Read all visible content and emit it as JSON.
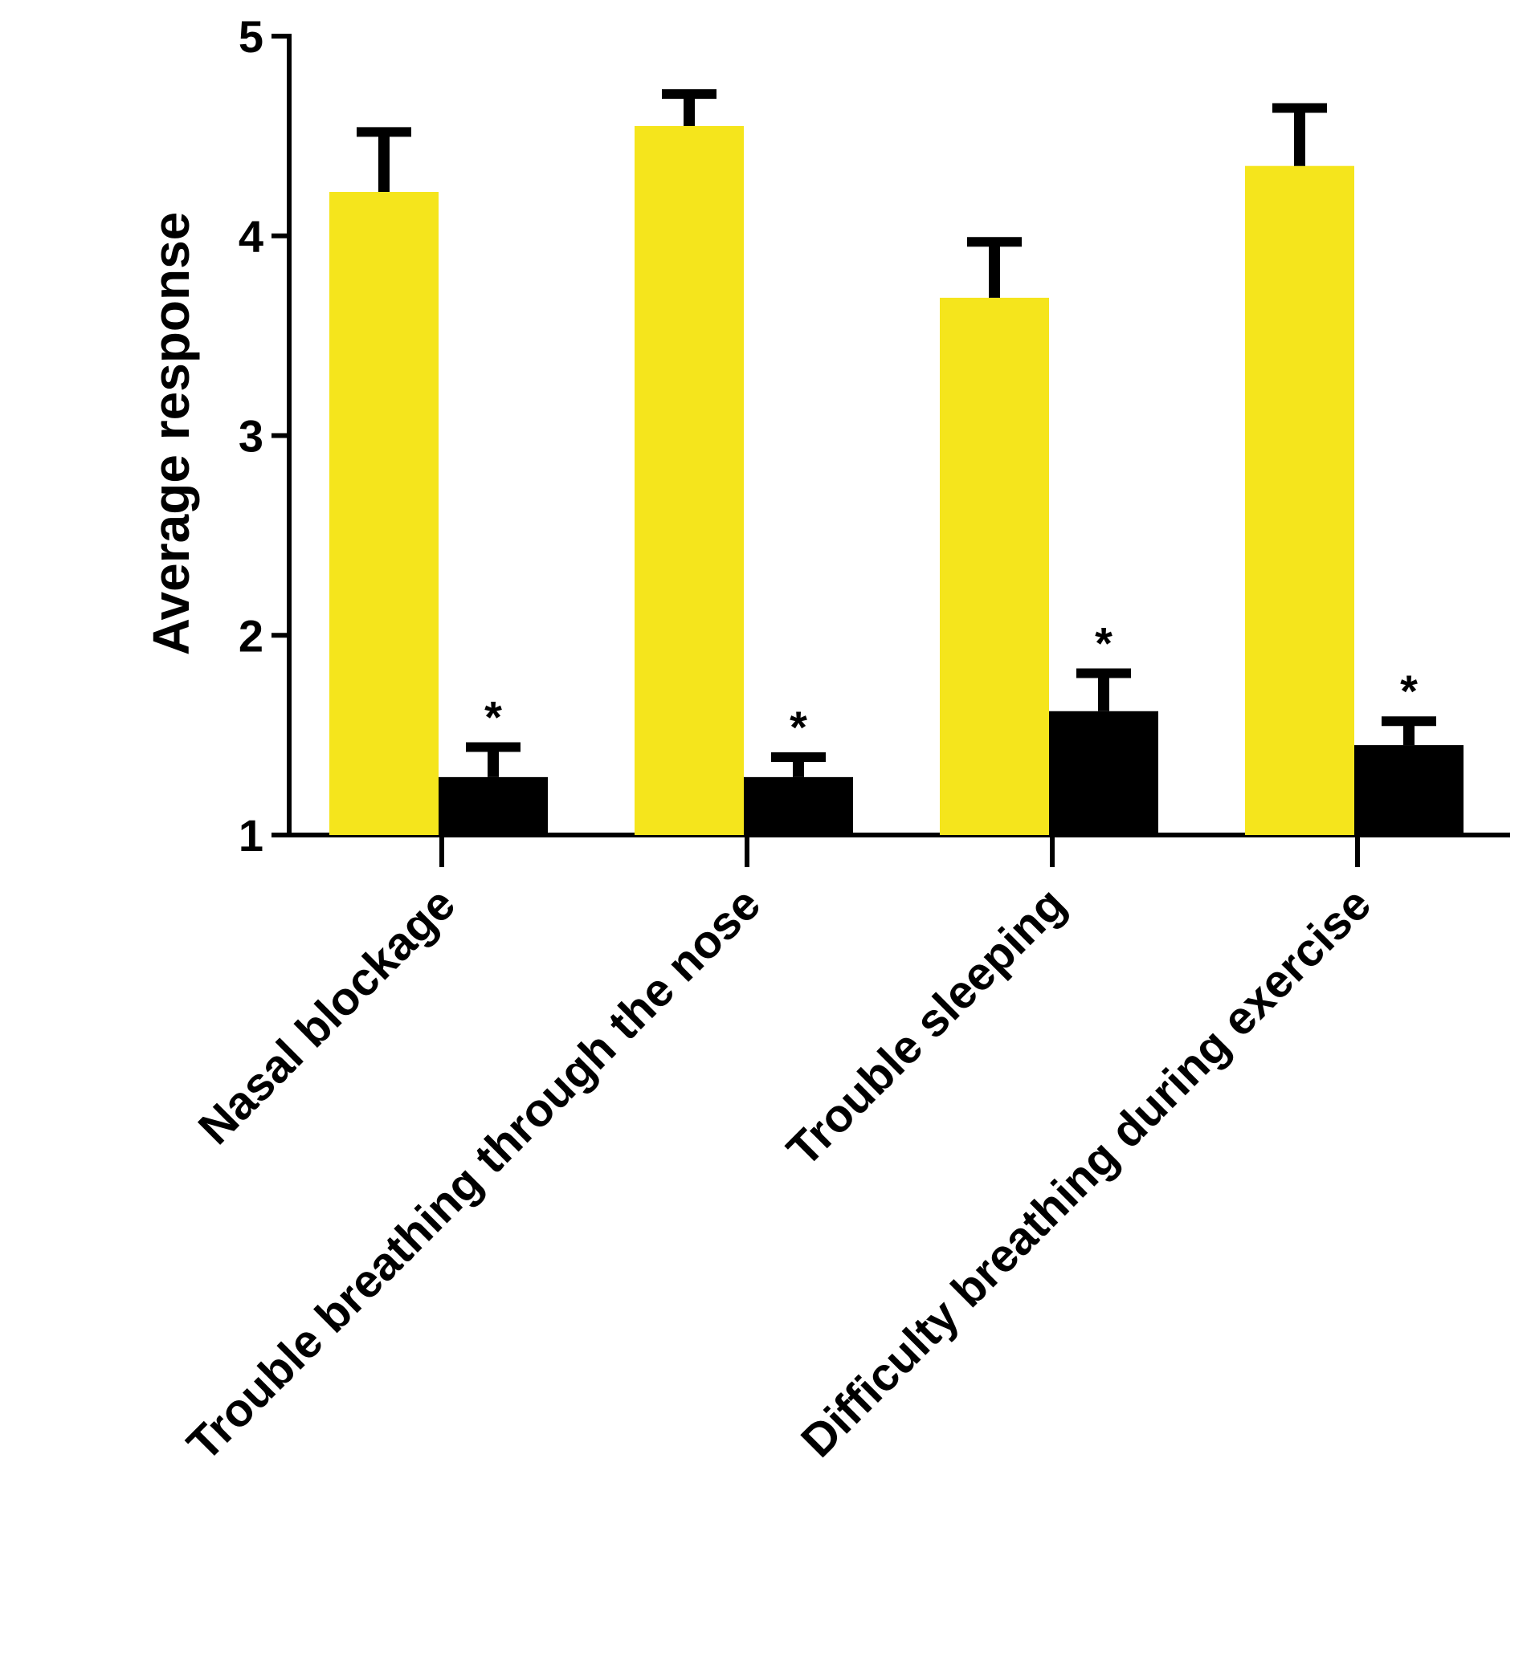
{
  "chart_data": {
    "type": "bar",
    "y_label": "Average response",
    "categories": [
      "Nasal blockage",
      "Trouble breathing through the nose",
      "Trouble sleeping",
      "Difficulty breathing during exercise"
    ],
    "series": [
      {
        "color": "#f5e51c",
        "values": [
          4.22,
          4.55,
          3.69,
          4.35
        ],
        "errors": [
          0.3,
          0.16,
          0.28,
          0.29
        ]
      },
      {
        "color": "#000000",
        "values": [
          1.29,
          1.29,
          1.62,
          1.45
        ],
        "errors": [
          0.15,
          0.1,
          0.19,
          0.12
        ]
      }
    ],
    "annotations": [
      "*",
      "*",
      "*",
      "*"
    ],
    "ylim": [
      1,
      5
    ],
    "yticks": [
      1,
      2,
      3,
      4,
      5
    ]
  }
}
